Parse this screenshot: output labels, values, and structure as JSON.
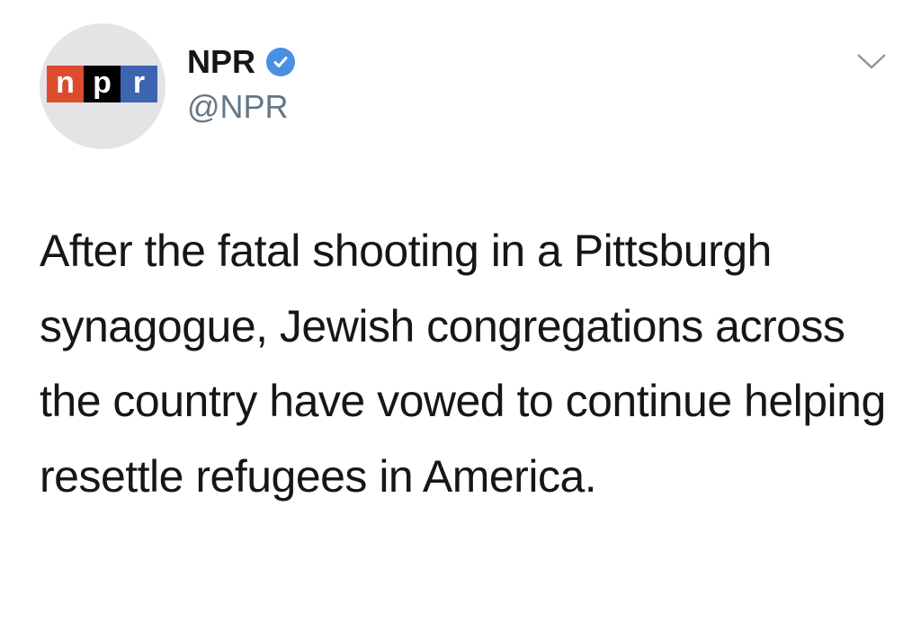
{
  "tweet": {
    "avatar": {
      "logo_letters": [
        "n",
        "p",
        "r"
      ],
      "colors": [
        "#dd4b2f",
        "#000000",
        "#3d64b0"
      ]
    },
    "display_name": "NPR",
    "verified": true,
    "verified_color": "#4a90e2",
    "handle": "@NPR",
    "menu_icon": "chevron-down-icon",
    "text": "After the fatal shooting in a Pittsburgh synagogue, Jewish congregations across the country have vowed to continue helping resettle refugees in America."
  }
}
